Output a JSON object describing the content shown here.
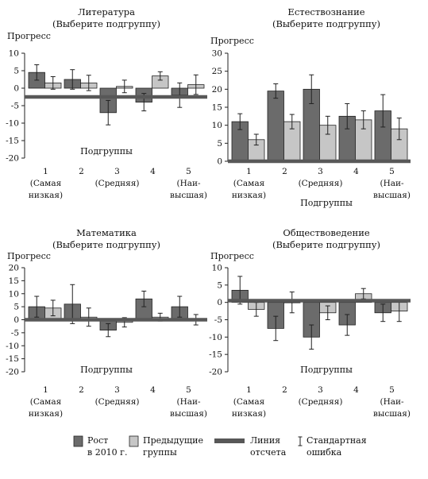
{
  "chart_data": [
    {
      "type": "bar",
      "title": "Литература",
      "subtitle": "(Выберите подгруппу)",
      "ylabel": "Прогресс",
      "xlabel": "Подгруппы",
      "ylim": [
        -20,
        10
      ],
      "yticks": [
        -20,
        -15,
        -10,
        -5,
        0,
        5,
        10
      ],
      "reference_line": -2.5,
      "categories": [
        "1",
        "2",
        "3",
        "4",
        "5"
      ],
      "category_sublabels": [
        [
          "(Самая",
          "низкая)"
        ],
        [],
        [
          "(Средняя)"
        ],
        [],
        [
          "(Наи-",
          "высшая)"
        ]
      ],
      "series": [
        {
          "name": "Рост в 2010 г.",
          "values": [
            4.5,
            2.5,
            -7.0,
            -4.0,
            -2.0
          ],
          "error": [
            2.2,
            2.8,
            3.5,
            2.5,
            3.5
          ]
        },
        {
          "name": "Предыдущие группы",
          "values": [
            1.5,
            1.5,
            0.5,
            3.5,
            1.0
          ],
          "error": [
            1.8,
            2.2,
            1.8,
            1.2,
            2.8
          ]
        }
      ]
    },
    {
      "type": "bar",
      "title": "Естествознание",
      "subtitle": "(Выберите подгруппу)",
      "ylabel": "Прогресс",
      "xlabel": "Подгруппы",
      "ylim": [
        0,
        30
      ],
      "yticks": [
        0,
        5,
        10,
        15,
        20,
        25,
        30
      ],
      "reference_line": 0,
      "categories": [
        "1",
        "2",
        "3",
        "4",
        "5"
      ],
      "category_sublabels": [
        [
          "(Самая",
          "низкая)"
        ],
        [],
        [
          "(Средняя)"
        ],
        [],
        [
          "(Наи-",
          "высшая)"
        ]
      ],
      "series": [
        {
          "name": "Рост в 2010 г.",
          "values": [
            11.0,
            19.5,
            20.0,
            12.5,
            14.0
          ],
          "error": [
            2.2,
            2.0,
            4.0,
            3.5,
            4.5
          ]
        },
        {
          "name": "Предыдущие группы",
          "values": [
            6.0,
            11.0,
            10.0,
            11.5,
            9.0
          ],
          "error": [
            1.5,
            2.0,
            2.5,
            2.5,
            3.0
          ]
        }
      ]
    },
    {
      "type": "bar",
      "title": "Математика",
      "subtitle": "(Выберите подгруппу)",
      "ylabel": "Прогресс",
      "xlabel": "Подгруппы",
      "ylim": [
        -20,
        20
      ],
      "yticks": [
        -20,
        -15,
        -10,
        -5,
        0,
        5,
        10,
        15,
        20
      ],
      "reference_line": 0,
      "categories": [
        "1",
        "2",
        "3",
        "4",
        "5"
      ],
      "category_sublabels": [
        [
          "(Самая",
          "низкая)"
        ],
        [],
        [
          "(Средняя)"
        ],
        [],
        [
          "(Наи-",
          "высшая)"
        ]
      ],
      "series": [
        {
          "name": "Рост в 2010 г.",
          "values": [
            5.0,
            6.0,
            -4.0,
            8.0,
            5.0
          ],
          "error": [
            4.0,
            7.5,
            2.5,
            3.0,
            4.0
          ]
        },
        {
          "name": "Предыдущие группы",
          "values": [
            4.5,
            1.0,
            -1.0,
            1.0,
            0.0
          ],
          "error": [
            3.0,
            3.5,
            1.8,
            1.5,
            2.0
          ]
        }
      ]
    },
    {
      "type": "bar",
      "title": "Обществоведение",
      "subtitle": "(Выберите подгруппу)",
      "ylabel": "Прогресс",
      "xlabel": "Подгруппы",
      "ylim": [
        -20,
        10
      ],
      "yticks": [
        -20,
        -15,
        -10,
        -5,
        0,
        5,
        10
      ],
      "reference_line": 0.5,
      "categories": [
        "1",
        "2",
        "3",
        "4",
        "5"
      ],
      "category_sublabels": [
        [
          "(Самая",
          "низкая)"
        ],
        [],
        [
          "(Средняя)"
        ],
        [],
        [
          "(Наи-",
          "высшая)"
        ]
      ],
      "series": [
        {
          "name": "Рост в 2010 г.",
          "values": [
            3.5,
            -7.5,
            -10.0,
            -6.5,
            -3.0
          ],
          "error": [
            4.0,
            3.5,
            3.5,
            3.0,
            2.5
          ]
        },
        {
          "name": "Предыдущие группы",
          "values": [
            -2.0,
            0.0,
            -3.0,
            2.5,
            -2.5
          ],
          "error": [
            2.0,
            3.0,
            2.0,
            1.5,
            3.0
          ]
        }
      ]
    }
  ],
  "legend": {
    "items": [
      {
        "kind": "bar-dark",
        "lines": [
          "Рост",
          "в 2010 г."
        ]
      },
      {
        "kind": "bar-light",
        "lines": [
          "Предыдущие",
          "группы"
        ]
      },
      {
        "kind": "ref-line",
        "lines": [
          "Линия",
          "отсчета"
        ]
      },
      {
        "kind": "error-bar",
        "lines": [
          "Стандартная",
          "ошибка"
        ]
      }
    ]
  },
  "colors": {
    "growth_2010": "#6b6b6b",
    "previous_groups": "#c6c6c6",
    "reference_line": "#585858",
    "axis": "#222222"
  }
}
